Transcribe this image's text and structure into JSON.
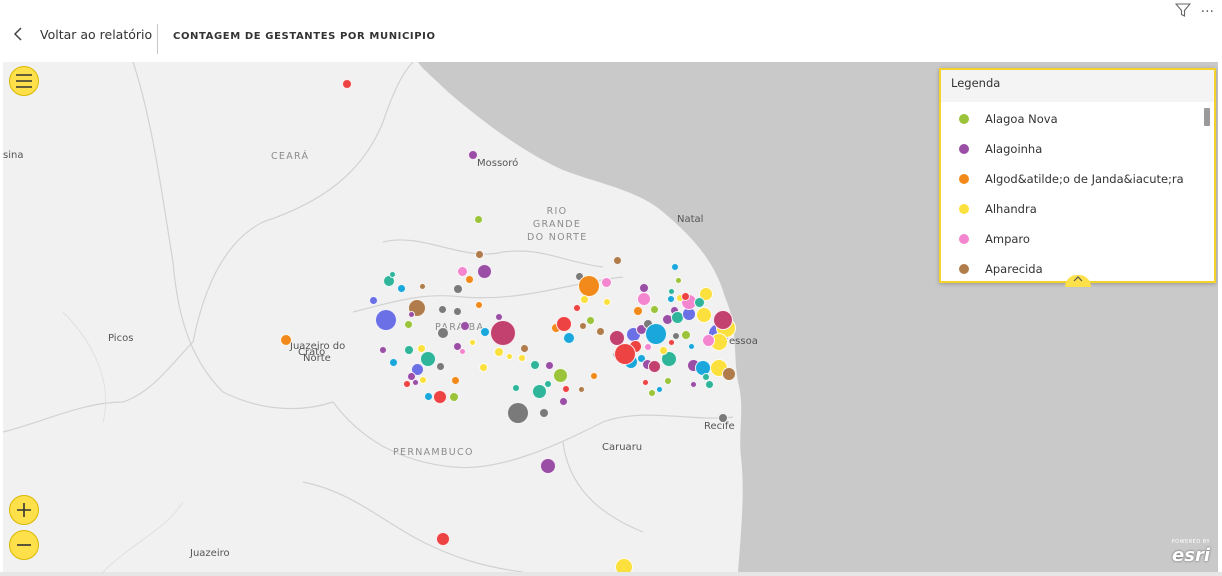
{
  "header": {
    "back_label": "Voltar ao relatório",
    "title": "CONTAGEM DE GESTANTES POR MUNICIPIO",
    "filter_icon": "filter-icon",
    "more_icon": "more-options-icon",
    "more_glyph": "···"
  },
  "map": {
    "place_labels": {
      "teresina": "sina",
      "mossoro": "Mossoró",
      "natal": "Natal",
      "picos": "Picos",
      "juazeiro_norte_1": "Juazeiro do",
      "juazeiro_norte_2": "Norte",
      "crato": "Crato",
      "joao_pessoa": "essoa",
      "recife": "Recife",
      "caruaru": "Caruaru",
      "juazeiro": "Juazeiro",
      "campina": "C"
    },
    "region_labels": {
      "ceara": "CEARÁ",
      "rn_1": "RIO",
      "rn_2": "GRANDE",
      "rn_3": "DO NORTE",
      "paraiba": "PARAÍBA",
      "pernambuco": "PERNAMBUCO"
    },
    "attribution_small": "POWERED BY",
    "attribution": "esri",
    "colors": {
      "green": "#9bc43b",
      "purple": "#9b4ea6",
      "orange": "#f28a1b",
      "yellow": "#fce03d",
      "pink": "#f485cf",
      "brown": "#b07c4b",
      "blue_violet": "#6b70e6",
      "teal": "#2fb59a",
      "red": "#ee4343",
      "gray": "#7a7a7a",
      "cyan": "#1aa7dc",
      "magenta": "#c3416f"
    }
  },
  "legend": {
    "title": "Legenda",
    "items": [
      {
        "label": "Alagoa Nova",
        "color": "#9bc43b"
      },
      {
        "label": "Alagoinha",
        "color": "#9b4ea6"
      },
      {
        "label": "Algod&atilde;o de Janda&iacute;ra",
        "color": "#f28a1b"
      },
      {
        "label": "Alhandra",
        "color": "#fce03d"
      },
      {
        "label": "Amparo",
        "color": "#f485cf"
      },
      {
        "label": "Aparecida",
        "color": "#b07c4b"
      }
    ]
  }
}
